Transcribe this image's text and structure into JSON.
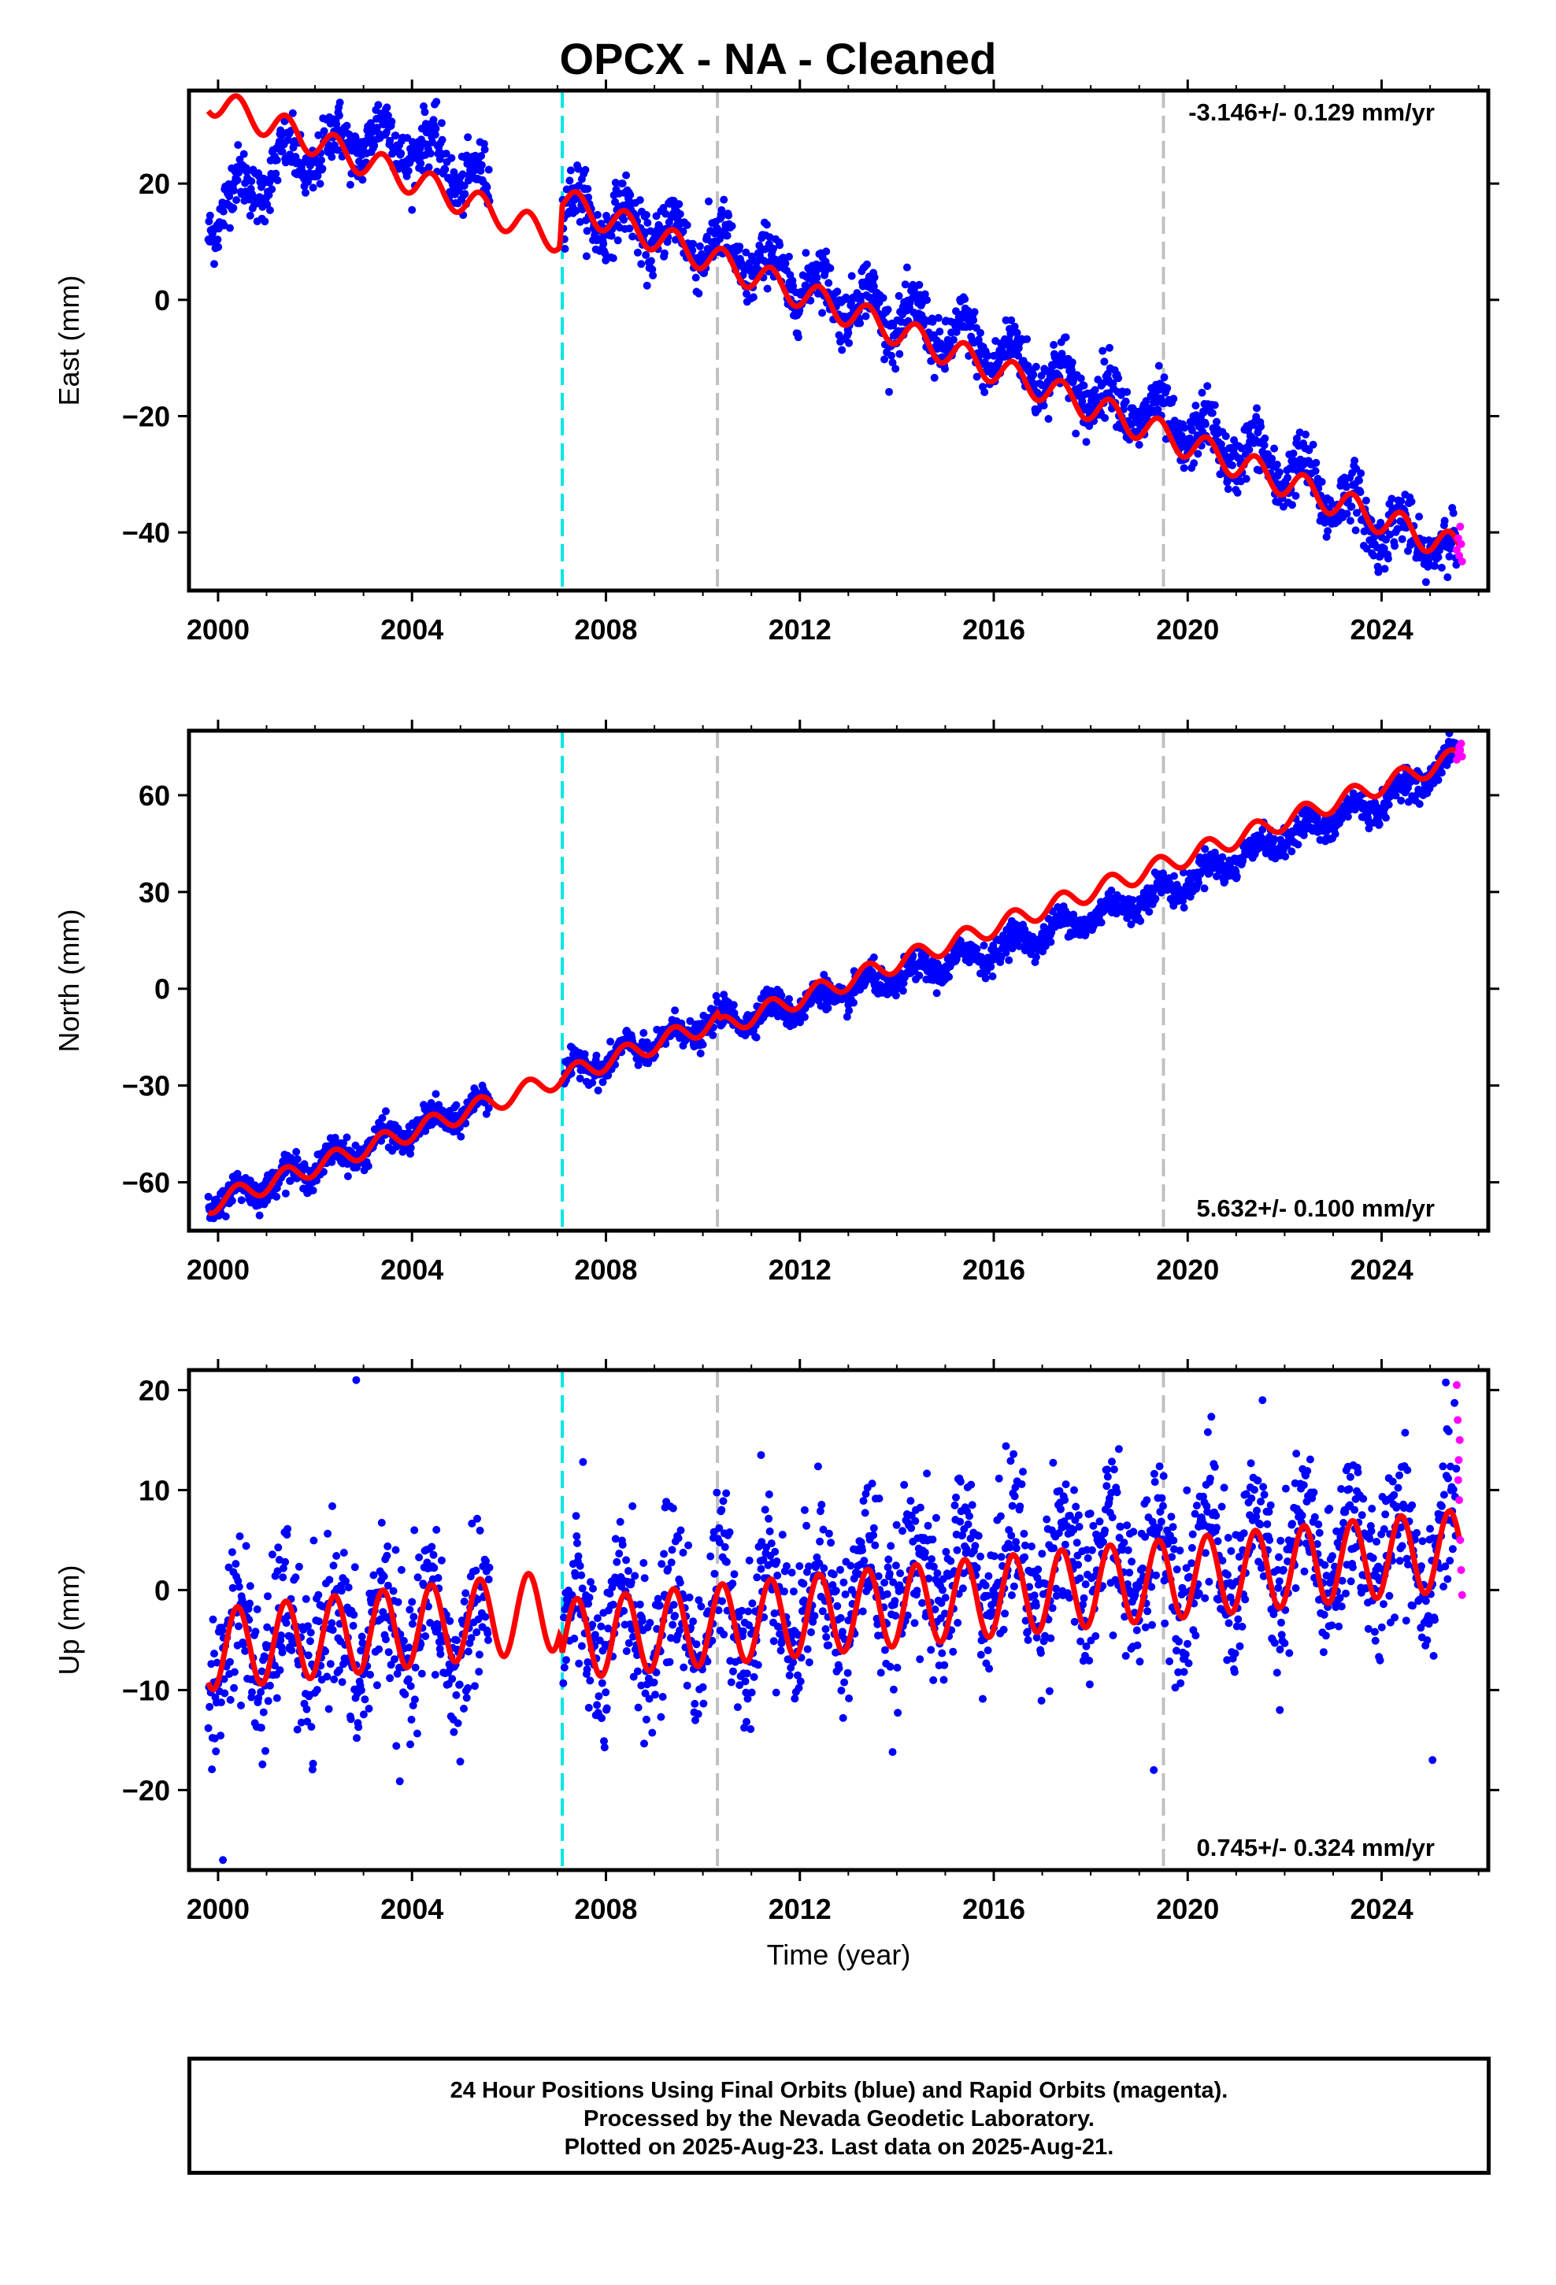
{
  "title": "OPCX  - NA - Cleaned",
  "colors": {
    "final_orbits": "#0000ff",
    "rapid_orbits": "#ff00ff",
    "model": "#ff0000",
    "equipment_change": "#00e5e5",
    "other_offset": "#c0c0c0"
  },
  "footer": {
    "line1": "24 Hour Positions Using Final Orbits (blue) and Rapid Orbits (magenta).",
    "line2": "Processed by the Nevada Geodetic Laboratory.",
    "line3": "Plotted on 2025-Aug-23. Last data on 2025-Aug-21."
  },
  "chart_data": [
    {
      "type": "scatter",
      "component": "east",
      "ylabel": "East (mm)",
      "xlabel": "",
      "xlim": [
        1999.4,
        2026.2
      ],
      "ylim": [
        -50,
        36
      ],
      "xticks": [
        2000,
        2004,
        2008,
        2012,
        2016,
        2020,
        2024
      ],
      "yticks": [
        -40,
        -20,
        0,
        20
      ],
      "rate_label": "-3.146+/- 0.129 mm/yr",
      "rate_position": "top-right",
      "vlines": {
        "cyan": [
          2007.1
        ],
        "gray": [
          2010.3,
          2019.5
        ]
      },
      "data_span": [
        1999.8,
        2025.6
      ],
      "series": [
        {
          "name": "Final Orbits (blue)",
          "color": "#0000ff",
          "trend": [
            [
              1999.8,
              14
            ],
            [
              2001.0,
              22
            ],
            [
              2002.0,
              25
            ],
            [
              2003.0,
              28
            ],
            [
              2004.0,
              27
            ],
            [
              2005.0,
              22
            ],
            [
              2005.6,
              18
            ],
            [
              2007.1,
              16
            ],
            [
              2010.3,
              9
            ],
            [
              2012.0,
              3
            ],
            [
              2016.0,
              -9
            ],
            [
              2019.5,
              -21
            ],
            [
              2022.0,
              -29
            ],
            [
              2024.0,
              -39
            ],
            [
              2025.6,
              -44
            ]
          ],
          "seasonal_amplitude": 3.5,
          "scatter": 2.5
        },
        {
          "name": "Rapid Orbits (magenta)",
          "color": "#ff00ff",
          "points": [
            [
              2025.55,
              -43
            ],
            [
              2025.58,
              -41
            ],
            [
              2025.6,
              -44
            ],
            [
              2025.62,
              -39
            ],
            [
              2025.64,
              -42
            ],
            [
              2025.66,
              -45
            ]
          ]
        }
      ],
      "model": {
        "color": "#ff0000",
        "trend": [
          [
            1999.8,
            34.5
          ],
          [
            2007.05,
            10.5
          ],
          [
            2007.1,
            17
          ],
          [
            2025.6,
            -43
          ]
        ],
        "seasonal_amplitude": 2.5
      }
    },
    {
      "type": "scatter",
      "component": "north",
      "ylabel": "North (mm)",
      "xlabel": "",
      "xlim": [
        1999.4,
        2026.2
      ],
      "ylim": [
        -75,
        80
      ],
      "xticks": [
        2000,
        2004,
        2008,
        2012,
        2016,
        2020,
        2024
      ],
      "yticks": [
        -60,
        -30,
        0,
        30,
        60
      ],
      "rate_label": "5.632+/- 0.100 mm/yr",
      "rate_position": "bottom-right",
      "vlines": {
        "cyan": [
          2007.1
        ],
        "gray": [
          2010.3,
          2019.5
        ]
      },
      "data_span": [
        1999.8,
        2025.6
      ],
      "series": [
        {
          "name": "Final Orbits (blue)",
          "color": "#0000ff",
          "trend": [
            [
              1999.8,
              -67
            ],
            [
              2005.6,
              -35
            ],
            [
              2007.1,
              -27
            ],
            [
              2010.3,
              -10
            ],
            [
              2012.0,
              -5
            ],
            [
              2016.0,
              12
            ],
            [
              2019.5,
              30
            ],
            [
              2022.0,
              47
            ],
            [
              2024.0,
              58
            ],
            [
              2025.6,
              72
            ]
          ],
          "seasonal_amplitude": 3.0,
          "scatter": 2.2
        },
        {
          "name": "Rapid Orbits (magenta)",
          "color": "#ff00ff",
          "points": [
            [
              2025.55,
              71
            ],
            [
              2025.58,
              73
            ],
            [
              2025.6,
              75
            ],
            [
              2025.62,
              74
            ],
            [
              2025.64,
              76
            ],
            [
              2025.66,
              72
            ]
          ]
        }
      ],
      "model": {
        "color": "#ff0000",
        "trend": [
          [
            1999.8,
            -67
          ],
          [
            2010.3,
            -10
          ],
          [
            2010.35,
            -12
          ],
          [
            2025.6,
            72
          ]
        ],
        "seasonal_amplitude": 3.0
      }
    },
    {
      "type": "scatter",
      "component": "up",
      "ylabel": "Up (mm)",
      "xlabel": "Time (year)",
      "xlim": [
        1999.4,
        2026.2
      ],
      "ylim": [
        -28,
        22
      ],
      "xticks": [
        2000,
        2004,
        2008,
        2012,
        2016,
        2020,
        2024
      ],
      "yticks": [
        -20,
        -10,
        0,
        10,
        20
      ],
      "rate_label": "0.745+/- 0.324 mm/yr",
      "rate_position": "bottom-right",
      "vlines": {
        "cyan": [
          2007.1
        ],
        "gray": [
          2010.3,
          2019.5
        ]
      },
      "data_span": [
        1999.8,
        2025.6
      ],
      "series": [
        {
          "name": "Final Orbits (blue)",
          "color": "#0000ff",
          "trend": [
            [
              1999.8,
              -6
            ],
            [
              2005.6,
              -4
            ],
            [
              2007.1,
              -5
            ],
            [
              2012.0,
              -1
            ],
            [
              2016.0,
              2
            ],
            [
              2019.5,
              3
            ],
            [
              2022.0,
              3
            ],
            [
              2025.6,
              5
            ]
          ],
          "seasonal_amplitude": 4.5,
          "scatter": 4.0,
          "outliers": [
            [
              2002.85,
              21
            ],
            [
              2011.2,
              13.5
            ],
            [
              2019.3,
              -18
            ],
            [
              2021.9,
              -12
            ],
            [
              2025.05,
              -17
            ],
            [
              2000.1,
              -27
            ]
          ]
        },
        {
          "name": "Rapid Orbits (magenta)",
          "color": "#ff00ff",
          "points": [
            [
              2025.55,
              20.5
            ],
            [
              2025.57,
              17
            ],
            [
              2025.59,
              13
            ],
            [
              2025.6,
              9
            ],
            [
              2025.62,
              5
            ],
            [
              2025.64,
              2
            ],
            [
              2025.66,
              -0.5
            ],
            [
              2025.58,
              11
            ],
            [
              2025.61,
              15
            ]
          ]
        }
      ],
      "model": {
        "color": "#ff0000",
        "trend": [
          [
            1999.8,
            -6
          ],
          [
            2007.05,
            -2
          ],
          [
            2007.1,
            -5
          ],
          [
            2025.6,
            4
          ]
        ],
        "seasonal_amplitude": 4.0
      }
    }
  ]
}
